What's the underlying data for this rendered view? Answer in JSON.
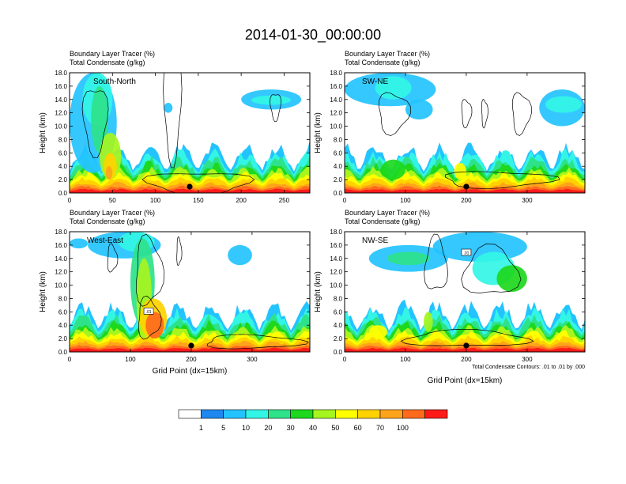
{
  "title": "2014-01-30_00:00:00",
  "chart_data": [
    {
      "type": "heatmap",
      "label": "South-North",
      "subtitle": [
        "Boundary Layer Tracer (%)",
        "Total Condensate (g/kg)"
      ],
      "ylabel": "Height (km)",
      "xlabel": "",
      "xlim": [
        0,
        280
      ],
      "ylim": [
        0,
        18
      ],
      "xticks": [
        0,
        50,
        100,
        150,
        200,
        250
      ],
      "yticks": [
        "0.0",
        "2.0",
        "4.0",
        "6.0",
        "8.0",
        "10.0",
        "12.0",
        "14.0",
        "16.0",
        "18.0"
      ],
      "marker_x": 140
    },
    {
      "type": "heatmap",
      "label": "SW-NE",
      "subtitle": [
        "Boundary Layer Tracer (%)",
        "Total Condensate (g/kg)"
      ],
      "ylabel": "Height (km)",
      "xlabel": "",
      "xlim": [
        0,
        395
      ],
      "ylim": [
        0,
        18
      ],
      "xticks": [
        0,
        100,
        200,
        300
      ],
      "yticks": [
        "0.0",
        "2.0",
        "4.0",
        "6.0",
        "8.0",
        "10.0",
        "12.0",
        "14.0",
        "16.0",
        "18.0"
      ],
      "marker_x": 200
    },
    {
      "type": "heatmap",
      "label": "West-East",
      "subtitle": [
        "Boundary Layer Tracer (%)",
        "Total Condensate (g/kg)"
      ],
      "ylabel": "Height (km)",
      "xlabel": "Grid Point (dx=15km)",
      "xlim": [
        0,
        395
      ],
      "ylim": [
        0,
        18
      ],
      "xticks": [
        0,
        100,
        200,
        300
      ],
      "yticks": [
        "0.0",
        "2.0",
        "4.0",
        "6.0",
        "8.0",
        "10.0",
        "12.0",
        "14.0",
        "16.0",
        "18.0"
      ],
      "marker_x": 200,
      "contour_label": ".01"
    },
    {
      "type": "heatmap",
      "label": "NW-SE",
      "subtitle": [
        "Boundary Layer Tracer (%)",
        "Total Condensate (g/kg)"
      ],
      "ylabel": "Height (km)",
      "xlabel": "Grid Point (dx=15km)",
      "xlim": [
        0,
        395
      ],
      "ylim": [
        0,
        18
      ],
      "xticks": [
        0,
        100,
        200,
        300
      ],
      "yticks": [
        "0.0",
        "2.0",
        "4.0",
        "6.0",
        "8.0",
        "10.0",
        "12.0",
        "14.0",
        "16.0",
        "18.0"
      ],
      "marker_x": 200,
      "contour_label": ".01",
      "note": "Total Condensate Contours: .01 to .01 by .000"
    }
  ],
  "colorbar": {
    "labels": [
      "1",
      "5",
      "10",
      "20",
      "30",
      "40",
      "50",
      "60",
      "70",
      "100"
    ],
    "colors": [
      "#ffffff",
      "#1e88f0",
      "#23c3ff",
      "#33f5e6",
      "#2ee28a",
      "#1dd81d",
      "#a6f51e",
      "#ffff00",
      "#ffd200",
      "#ffa41a",
      "#ff6a1d",
      "#ff1a1a"
    ]
  }
}
